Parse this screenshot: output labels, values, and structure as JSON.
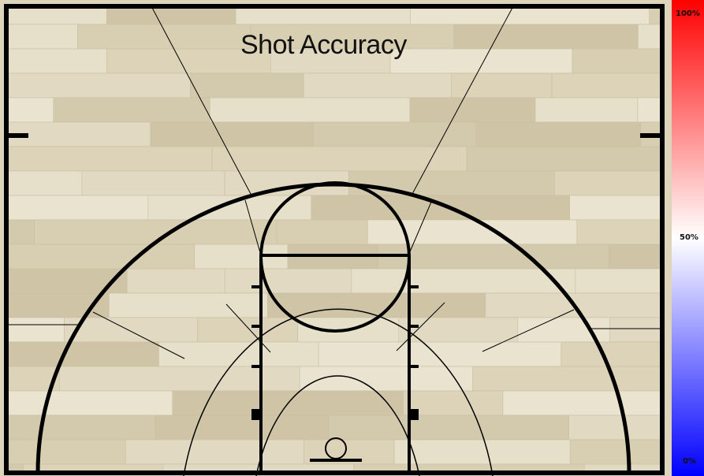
{
  "chart_data": {
    "type": "heatmap",
    "title": "Shot Accuracy",
    "colorbar": {
      "ticks": [
        "100%",
        "50%",
        "0%"
      ],
      "colors": {
        "high": "#ff0000",
        "mid": "#ffffff",
        "low": "#0000ff"
      }
    },
    "regions": [],
    "grid": false
  },
  "court": {
    "floor_color": "#ddd4bb",
    "line_color": "#000000"
  }
}
